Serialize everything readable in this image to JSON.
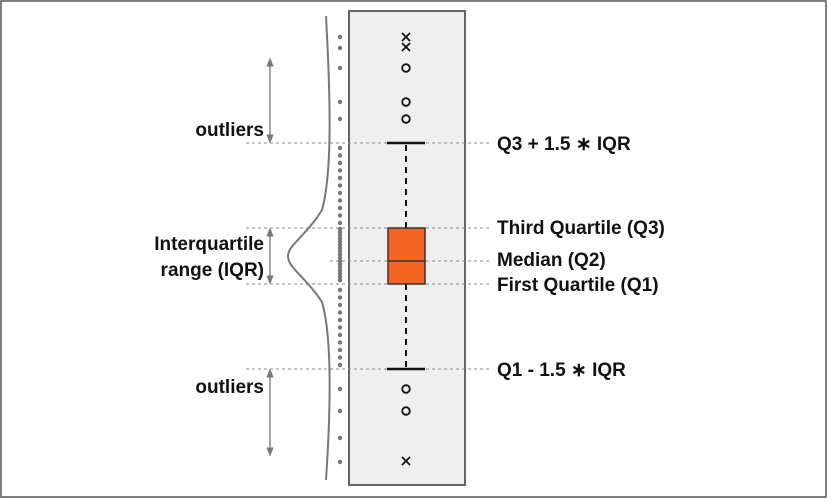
{
  "labels": {
    "outliers_top": "outliers",
    "iqr_line1": "Interquartile",
    "iqr_line2": "range (IQR)",
    "outliers_bottom": "outliers",
    "upper_fence": "Q3 + 1.5 ∗ IQR",
    "third_quartile": "Third Quartile (Q3)",
    "median": "Median (Q2)",
    "first_quartile": "First Quartile (Q1)",
    "lower_fence": "Q1 - 1.5 ∗ IQR"
  },
  "colors": {
    "box_fill": "#f26522",
    "panel_fill": "#efefef",
    "panel_border": "#666666",
    "dots": "#777777",
    "guide_lines": "#888888",
    "arrows": "#777777"
  }
}
